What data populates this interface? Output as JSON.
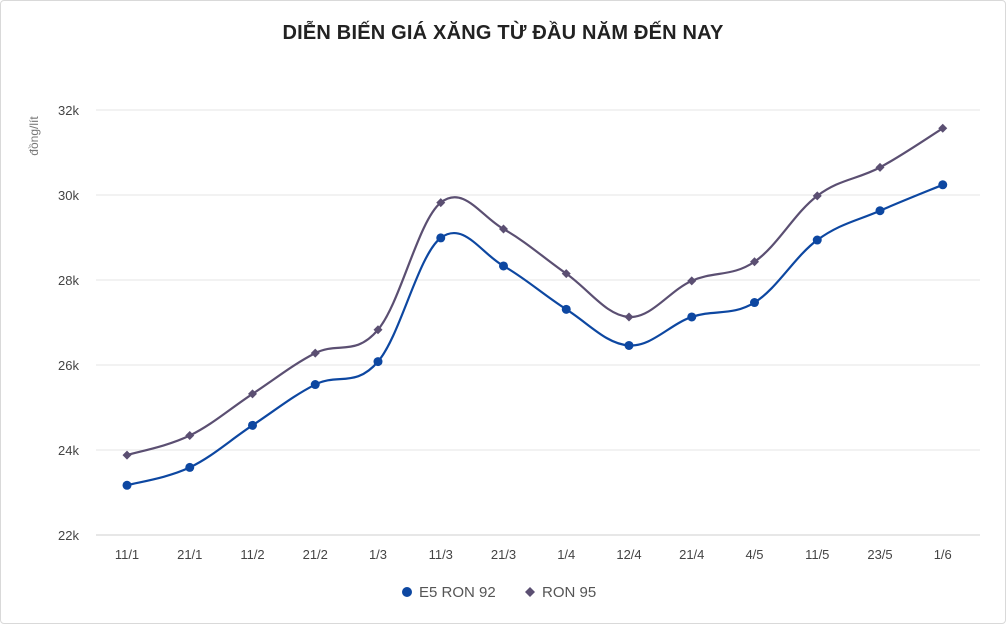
{
  "chart_data": {
    "type": "line",
    "title": "DIỄN BIẾN GIÁ XĂNG TỪ ĐẦU NĂM ĐẾN NAY",
    "xlabel": "",
    "ylabel": "đồng/lít",
    "categories": [
      "11/1",
      "21/1",
      "11/2",
      "21/2",
      "1/3",
      "11/3",
      "21/3",
      "1/4",
      "12/4",
      "21/4",
      "4/5",
      "11/5",
      "23/5",
      "1/6"
    ],
    "y_ticks": [
      "22k",
      "24k",
      "26k",
      "28k",
      "30k",
      "32k"
    ],
    "y_tick_values": [
      22000,
      24000,
      26000,
      28000,
      30000,
      32000
    ],
    "ylim": [
      22000,
      32000
    ],
    "grid": "horizontal",
    "legend_position": "bottom",
    "series": [
      {
        "name": "E5 RON 92",
        "color": "#0d47a1",
        "marker": "circle",
        "values": [
          23170,
          23590,
          24580,
          25540,
          26080,
          28990,
          28330,
          27310,
          26460,
          27130,
          27470,
          28940,
          29630,
          30240
        ]
      },
      {
        "name": "RON 95",
        "color": "#5b4f72",
        "marker": "diamond",
        "values": [
          23880,
          24340,
          25320,
          26280,
          26830,
          29820,
          29200,
          28150,
          27130,
          27980,
          28430,
          29980,
          30650,
          31570
        ]
      }
    ]
  }
}
